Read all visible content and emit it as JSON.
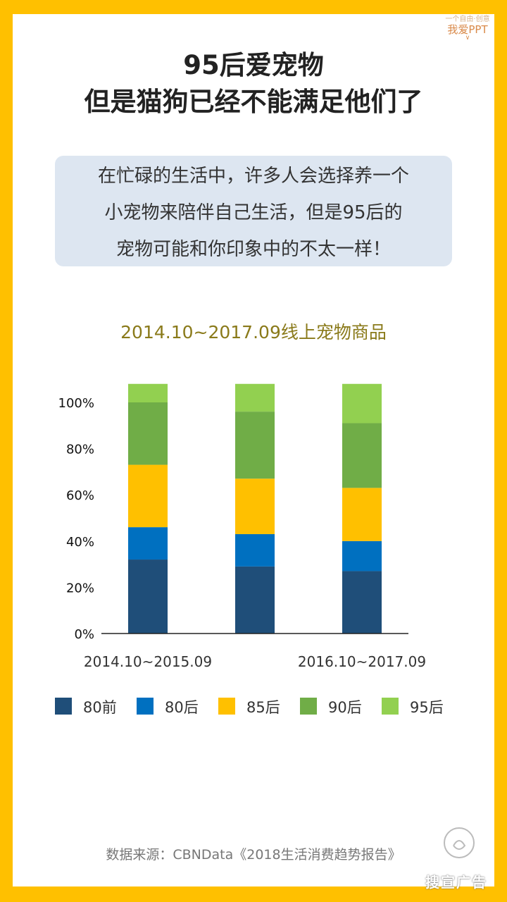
{
  "header": {
    "logo_small": "一个自由·创意",
    "logo_text": "我爱PPT",
    "logo_mark": "∨",
    "title_line1": "95后爱宠物",
    "title_line2": "但是猫狗已经不能满足他们了"
  },
  "intro": {
    "lines": [
      "在忙碌的生活中，许多人会选择养一个",
      "小宠物来陪伴自己生活，但是95后的",
      "宠物可能和你印象中的不太一样！"
    ]
  },
  "chart_data": {
    "type": "bar",
    "stacked": true,
    "title": "2014.10~2017.09线上宠物商品",
    "xlabel": "",
    "ylabel": "",
    "categories": [
      "2014.10~2015.09",
      "",
      "2016.10~2017.09"
    ],
    "category_labels_shown": [
      "2014.10~2015.09",
      "2016.10~2017.09"
    ],
    "y_ticks": [
      "0%",
      "20%",
      "40%",
      "60%",
      "80%",
      "100%"
    ],
    "ylim": [
      0,
      108
    ],
    "grid": false,
    "legend_position": "bottom",
    "series": [
      {
        "name": "80前",
        "color": "#1F4E79",
        "values": [
          32,
          29,
          27
        ]
      },
      {
        "name": "80后",
        "color": "#0070C0",
        "values": [
          14,
          14,
          13
        ]
      },
      {
        "name": "85后",
        "color": "#FFC000",
        "values": [
          27,
          24,
          23
        ]
      },
      {
        "name": "90后",
        "color": "#70AD47",
        "values": [
          27,
          29,
          28
        ]
      },
      {
        "name": "95后",
        "color": "#92D050",
        "values": [
          8,
          12,
          17
        ]
      }
    ]
  },
  "footer": {
    "source": "数据来源：CBNData《2018生活消费趋势报告》",
    "watermark": "搜宣广告"
  },
  "colors": {
    "frame": "#FFC000",
    "intro_bg": "#DDE6F1",
    "chart_title": "#8a7a1a"
  }
}
